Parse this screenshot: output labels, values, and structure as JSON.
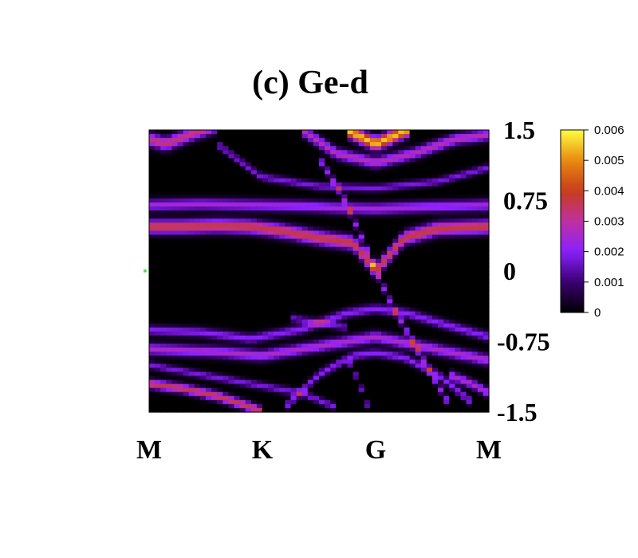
{
  "chart_data": {
    "type": "heatmap",
    "title": "(c) Ge-d",
    "xlabel": "",
    "ylabel": "",
    "x_ticks": [
      "M",
      "K",
      "G",
      "M"
    ],
    "y_ticks": [
      "1.5",
      "0.75",
      "0",
      "-0.75",
      "-1.5"
    ],
    "ylim": [
      -1.5,
      1.5
    ],
    "colorbar": {
      "ticks": [
        "0.006",
        "0.005",
        "0.004",
        "0.003",
        "0.002",
        "0.001",
        "0"
      ],
      "range": [
        0,
        0.006
      ]
    },
    "colormap": [
      "#000000",
      "#3a0070",
      "#8a20ff",
      "#c030a0",
      "#c83c1a",
      "#e88a10",
      "#ffff40"
    ],
    "bands": [
      {
        "name": "b1",
        "amp": 0.0038,
        "width": 0.07,
        "pts": [
          [
            0,
            0.47
          ],
          [
            0.1,
            0.47
          ],
          [
            0.2,
            0.48
          ],
          [
            0.3,
            0.47
          ],
          [
            0.4,
            0.42
          ],
          [
            0.5,
            0.35
          ],
          [
            0.6,
            0.3
          ],
          [
            0.667,
            0.0
          ]
        ]
      },
      {
        "name": "b2",
        "amp": 0.0038,
        "width": 0.07,
        "pts": [
          [
            0.667,
            0.0
          ],
          [
            0.75,
            0.35
          ],
          [
            0.85,
            0.45
          ],
          [
            1.0,
            0.47
          ]
        ]
      },
      {
        "name": "b3",
        "amp": 0.0024,
        "width": 0.06,
        "pts": [
          [
            0,
            0.7
          ],
          [
            0.15,
            0.71
          ],
          [
            0.3,
            0.7
          ],
          [
            0.45,
            0.69
          ],
          [
            0.55,
            0.67
          ],
          [
            0.667,
            0.66
          ],
          [
            0.8,
            0.68
          ],
          [
            1.0,
            0.7
          ]
        ]
      },
      {
        "name": "b4",
        "amp": 0.0033,
        "width": 0.07,
        "pts": [
          [
            0,
            1.4
          ],
          [
            0.05,
            1.35
          ],
          [
            0.12,
            1.45
          ],
          [
            0.2,
            1.55
          ]
        ]
      },
      {
        "name": "b5",
        "amp": 0.0028,
        "width": 0.06,
        "pts": [
          [
            0.45,
            1.5
          ],
          [
            0.55,
            1.25
          ],
          [
            0.667,
            1.15
          ],
          [
            0.78,
            1.25
          ],
          [
            0.9,
            1.4
          ],
          [
            1.0,
            1.45
          ]
        ]
      },
      {
        "name": "b6",
        "amp": 0.0055,
        "width": 0.07,
        "pts": [
          [
            0.58,
            1.5
          ],
          [
            0.667,
            1.35
          ],
          [
            0.76,
            1.5
          ]
        ]
      },
      {
        "name": "b7",
        "amp": 0.0018,
        "width": 0.04,
        "pts": [
          [
            0.2,
            1.35
          ],
          [
            0.33,
            1.0
          ],
          [
            0.5,
            0.9
          ],
          [
            0.667,
            0.88
          ],
          [
            0.85,
            0.95
          ],
          [
            1.0,
            1.1
          ]
        ]
      },
      {
        "name": "b8",
        "amp": 0.0022,
        "width": 0.045,
        "pts": [
          [
            0.5,
            1.2
          ],
          [
            0.57,
            0.8
          ],
          [
            0.62,
            0.4
          ],
          [
            0.667,
            0.0
          ],
          [
            0.72,
            -0.4
          ],
          [
            0.8,
            -0.9
          ],
          [
            0.88,
            -1.4
          ]
        ]
      },
      {
        "name": "b9",
        "amp": 0.0022,
        "width": 0.045,
        "pts": [
          [
            0.84,
            1.35
          ],
          [
            0.78,
            0.8
          ],
          [
            0.72,
            0.4
          ],
          [
            0.667,
            0.0
          ],
          [
            0.61,
            -0.4
          ],
          [
            0.52,
            -0.9
          ],
          [
            0.42,
            -1.5
          ]
        ]
      },
      {
        "name": "b10",
        "amp": 0.0026,
        "width": 0.06,
        "pts": [
          [
            0,
            -0.83
          ],
          [
            0.2,
            -0.86
          ],
          [
            0.333,
            -0.9
          ],
          [
            0.5,
            -0.8
          ],
          [
            0.667,
            -0.7
          ],
          [
            0.8,
            -0.8
          ],
          [
            1.0,
            -0.95
          ]
        ]
      },
      {
        "name": "b11",
        "amp": 0.002,
        "width": 0.05,
        "pts": [
          [
            0,
            -0.63
          ],
          [
            0.15,
            -0.65
          ],
          [
            0.3,
            -0.72
          ],
          [
            0.45,
            -0.62
          ],
          [
            0.58,
            -0.45
          ],
          [
            0.667,
            -0.4
          ],
          [
            0.76,
            -0.45
          ],
          [
            0.9,
            -0.6
          ],
          [
            1.0,
            -0.7
          ]
        ]
      },
      {
        "name": "b12",
        "amp": 0.0036,
        "width": 0.05,
        "pts": [
          [
            0,
            -1.2
          ],
          [
            0.1,
            -1.25
          ],
          [
            0.2,
            -1.33
          ],
          [
            0.3,
            -1.45
          ],
          [
            0.333,
            -1.5
          ]
        ]
      },
      {
        "name": "b13",
        "amp": 0.0018,
        "width": 0.04,
        "pts": [
          [
            0,
            -1.0
          ],
          [
            0.15,
            -1.1
          ],
          [
            0.3,
            -1.2
          ],
          [
            0.45,
            -1.3
          ],
          [
            0.55,
            -1.45
          ]
        ]
      },
      {
        "name": "b14",
        "amp": 0.002,
        "width": 0.045,
        "pts": [
          [
            0.4,
            -1.45
          ],
          [
            0.5,
            -1.1
          ],
          [
            0.6,
            -0.9
          ],
          [
            0.667,
            -0.87
          ],
          [
            0.75,
            -0.92
          ],
          [
            0.85,
            -1.1
          ],
          [
            0.95,
            -1.4
          ]
        ]
      },
      {
        "name": "b15",
        "amp": 0.0018,
        "width": 0.035,
        "pts": [
          [
            0.58,
            -0.9
          ],
          [
            0.62,
            -1.2
          ],
          [
            0.65,
            -1.5
          ]
        ]
      },
      {
        "name": "b16",
        "amp": 0.0018,
        "width": 0.035,
        "pts": [
          [
            0.76,
            -0.95
          ],
          [
            0.72,
            -1.2
          ],
          [
            0.69,
            -1.5
          ]
        ]
      },
      {
        "name": "b17",
        "amp": 0.0026,
        "width": 0.05,
        "pts": [
          [
            0.88,
            -1.1
          ],
          [
            0.95,
            -1.2
          ],
          [
            1.0,
            -1.3
          ]
        ]
      },
      {
        "name": "b18",
        "amp": 0.0016,
        "width": 0.04,
        "pts": [
          [
            0.42,
            -0.5
          ],
          [
            0.5,
            -0.55
          ],
          [
            0.58,
            -0.6
          ]
        ]
      }
    ],
    "marker": {
      "name": "green-star-marker",
      "color": "#00cc00",
      "y": 0.0
    }
  }
}
